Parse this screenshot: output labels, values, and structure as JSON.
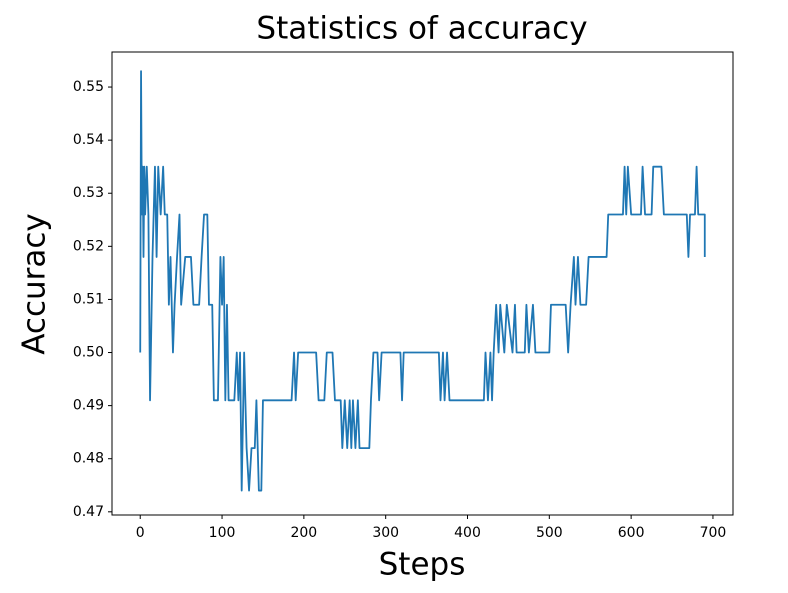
{
  "chart_data": {
    "type": "line",
    "title": "Statistics of accuracy",
    "x_label": "Steps",
    "y_label": "Accuracy",
    "x": [
      0,
      1,
      2,
      3,
      4,
      5,
      6,
      8,
      10,
      12,
      15,
      18,
      20,
      22,
      25,
      28,
      30,
      33,
      35,
      37,
      40,
      42,
      45,
      48,
      50,
      55,
      62,
      65,
      72,
      75,
      78,
      82,
      84,
      88,
      90,
      95,
      98,
      100,
      102,
      104,
      106,
      108,
      115,
      118,
      120,
      122,
      124,
      127,
      130,
      133,
      136,
      140,
      142,
      145,
      148,
      150,
      185,
      188,
      190,
      193,
      215,
      218,
      225,
      228,
      235,
      238,
      245,
      247,
      250,
      253,
      256,
      258,
      260,
      263,
      266,
      268,
      280,
      282,
      285,
      290,
      292,
      295,
      300,
      318,
      320,
      322,
      365,
      367,
      370,
      372,
      375,
      378,
      420,
      422,
      425,
      428,
      430,
      432,
      435,
      438,
      440,
      445,
      448,
      455,
      458,
      460,
      470,
      472,
      475,
      480,
      483,
      500,
      502,
      520,
      523,
      526,
      530,
      532,
      535,
      538,
      545,
      548,
      570,
      572,
      590,
      592,
      594,
      596,
      600,
      612,
      614,
      617,
      625,
      627,
      637,
      640,
      668,
      670,
      672,
      678,
      680,
      682,
      690,
      690
    ],
    "series": [
      {
        "name": "accuracy",
        "color": "#1f77b4",
        "values": [
          0.5,
          0.553,
          0.526,
          0.535,
          0.518,
          0.535,
          0.526,
          0.535,
          0.526,
          0.491,
          0.518,
          0.535,
          0.518,
          0.535,
          0.526,
          0.535,
          0.526,
          0.526,
          0.509,
          0.518,
          0.5,
          0.509,
          0.518,
          0.526,
          0.509,
          0.518,
          0.518,
          0.509,
          0.509,
          0.518,
          0.526,
          0.526,
          0.509,
          0.509,
          0.491,
          0.491,
          0.518,
          0.509,
          0.518,
          0.491,
          0.509,
          0.491,
          0.491,
          0.5,
          0.491,
          0.5,
          0.474,
          0.5,
          0.482,
          0.474,
          0.482,
          0.482,
          0.491,
          0.474,
          0.474,
          0.491,
          0.491,
          0.5,
          0.491,
          0.5,
          0.5,
          0.491,
          0.491,
          0.5,
          0.5,
          0.491,
          0.491,
          0.482,
          0.491,
          0.482,
          0.491,
          0.482,
          0.491,
          0.482,
          0.491,
          0.482,
          0.482,
          0.491,
          0.5,
          0.5,
          0.491,
          0.5,
          0.5,
          0.5,
          0.491,
          0.5,
          0.5,
          0.491,
          0.5,
          0.491,
          0.5,
          0.491,
          0.491,
          0.5,
          0.491,
          0.5,
          0.491,
          0.5,
          0.509,
          0.5,
          0.509,
          0.5,
          0.509,
          0.5,
          0.509,
          0.5,
          0.5,
          0.509,
          0.5,
          0.509,
          0.5,
          0.5,
          0.509,
          0.509,
          0.5,
          0.509,
          0.518,
          0.509,
          0.518,
          0.509,
          0.509,
          0.518,
          0.518,
          0.526,
          0.526,
          0.535,
          0.526,
          0.535,
          0.526,
          0.526,
          0.535,
          0.526,
          0.526,
          0.535,
          0.535,
          0.526,
          0.526,
          0.518,
          0.526,
          0.526,
          0.535,
          0.526,
          0.526,
          0.518
        ]
      }
    ],
    "xlim": [
      -34.5,
      724.5
    ],
    "ylim": [
      0.4694,
      0.5566
    ],
    "xticks": [
      0,
      100,
      200,
      300,
      400,
      500,
      600,
      700
    ],
    "yticks": [
      0.47,
      0.48,
      0.49,
      {
        "value": 0.5,
        "label": "0.50"
      },
      0.51,
      0.52,
      0.53,
      0.54,
      0.55
    ]
  }
}
